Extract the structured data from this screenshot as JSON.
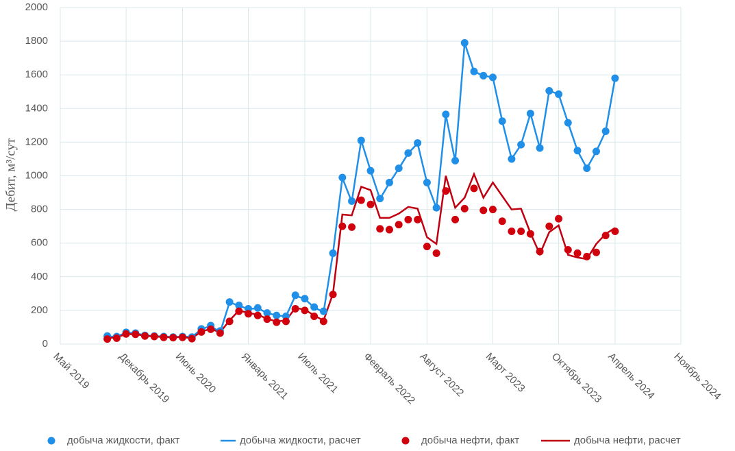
{
  "chart_data": {
    "type": "line",
    "y_label": "Дебит, м³/сут",
    "x": [
      "2019-10",
      "2019-11",
      "2019-12",
      "2020-01",
      "2020-02",
      "2020-03",
      "2020-04",
      "2020-05",
      "2020-06",
      "2020-07",
      "2020-08",
      "2020-09",
      "2020-10",
      "2020-11",
      "2020-12",
      "2021-01",
      "2021-02",
      "2021-03",
      "2021-04",
      "2021-05",
      "2021-06",
      "2021-07",
      "2021-08",
      "2021-09",
      "2021-10",
      "2021-11",
      "2021-12",
      "2022-01",
      "2022-02",
      "2022-03",
      "2022-04",
      "2022-05",
      "2022-06",
      "2022-07",
      "2022-08",
      "2022-09",
      "2022-10",
      "2022-11",
      "2022-12",
      "2023-01",
      "2023-02",
      "2023-03",
      "2023-04",
      "2023-05",
      "2023-06",
      "2023-07",
      "2023-08",
      "2023-09",
      "2023-10",
      "2023-11",
      "2023-12",
      "2024-01",
      "2024-02",
      "2024-03",
      "2024-04"
    ],
    "series": [
      {
        "name": "добыча жидкости, факт",
        "style": "markers",
        "color": "#1f8fe8",
        "values": [
          48,
          45,
          70,
          65,
          52,
          48,
          45,
          42,
          45,
          42,
          90,
          110,
          78,
          250,
          230,
          210,
          215,
          185,
          170,
          165,
          290,
          270,
          220,
          195,
          540,
          990,
          850,
          1210,
          1030,
          865,
          960,
          1045,
          1135,
          1195,
          960,
          810,
          1365,
          1090,
          1790,
          1620,
          1595,
          1585,
          1325,
          1100,
          1185,
          1370,
          1165,
          1505,
          1485,
          1315,
          1150,
          1045,
          1145,
          1265,
          1580
        ]
      },
      {
        "name": "добыча жидкости, расчет",
        "style": "line",
        "color": "#1f8fe8",
        "values": [
          45,
          45,
          68,
          65,
          52,
          48,
          45,
          42,
          45,
          42,
          88,
          108,
          70,
          248,
          228,
          208,
          213,
          185,
          170,
          165,
          288,
          268,
          218,
          190,
          540,
          988,
          845,
          1210,
          1030,
          862,
          958,
          1043,
          1133,
          1193,
          958,
          808,
          1363,
          1088,
          1790,
          1620,
          1595,
          1585,
          1325,
          1100,
          1185,
          1370,
          1165,
          1505,
          1485,
          1315,
          1150,
          1045,
          1145,
          1265,
          1580
        ]
      },
      {
        "name": "добыча нефти, факт",
        "style": "markers",
        "color": "#d0000c",
        "values": [
          30,
          35,
          60,
          58,
          48,
          45,
          40,
          38,
          40,
          32,
          72,
          88,
          65,
          135,
          195,
          180,
          170,
          148,
          130,
          135,
          210,
          200,
          165,
          135,
          295,
          700,
          695,
          855,
          830,
          685,
          680,
          710,
          740,
          740,
          580,
          540,
          910,
          740,
          805,
          925,
          795,
          800,
          730,
          670,
          670,
          655,
          550,
          700,
          745,
          560,
          540,
          520,
          545,
          645,
          670
        ]
      },
      {
        "name": "добыча нефти, расчет",
        "style": "line",
        "color": "#c00010",
        "values": [
          35,
          40,
          60,
          58,
          50,
          45,
          42,
          40,
          42,
          35,
          75,
          90,
          70,
          140,
          200,
          185,
          175,
          150,
          135,
          140,
          215,
          205,
          170,
          140,
          300,
          770,
          765,
          935,
          915,
          750,
          750,
          775,
          815,
          805,
          635,
          595,
          1000,
          810,
          870,
          1010,
          870,
          960,
          880,
          800,
          805,
          660,
          535,
          665,
          705,
          530,
          515,
          505,
          595,
          655,
          690
        ]
      }
    ],
    "xlim": [
      "2019-05",
      "2024-11"
    ],
    "xticks": [
      {
        "value": "2019-05",
        "label": "Май 2019"
      },
      {
        "value": "2019-12",
        "label": "Декабрь 2019"
      },
      {
        "value": "2020-06",
        "label": "Июнь 2020"
      },
      {
        "value": "2021-01",
        "label": "Январь 2021"
      },
      {
        "value": "2021-07",
        "label": "Июль 2021"
      },
      {
        "value": "2022-02",
        "label": "Февраль 2022"
      },
      {
        "value": "2022-08",
        "label": "Август 2022"
      },
      {
        "value": "2023-03",
        "label": "Март 2023"
      },
      {
        "value": "2023-10",
        "label": "Октябрь 2023"
      },
      {
        "value": "2024-04",
        "label": "Апрель 2024"
      },
      {
        "value": "2024-11",
        "label": "Ноябрь 2024"
      }
    ],
    "ylim": [
      0,
      2000
    ],
    "yticks": [
      0,
      200,
      400,
      600,
      800,
      1000,
      1200,
      1400,
      1600,
      1800,
      2000
    ],
    "grid": true,
    "legend": "bottom"
  }
}
